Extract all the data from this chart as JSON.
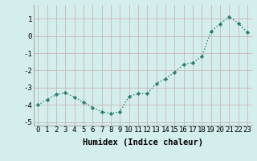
{
  "x": [
    0,
    1,
    2,
    3,
    4,
    5,
    6,
    7,
    8,
    9,
    10,
    11,
    12,
    13,
    14,
    15,
    16,
    17,
    18,
    19,
    20,
    21,
    22,
    23
  ],
  "y": [
    -4.0,
    -3.7,
    -3.4,
    -3.3,
    -3.55,
    -3.85,
    -4.15,
    -4.4,
    -4.5,
    -4.4,
    -3.5,
    -3.35,
    -3.35,
    -2.75,
    -2.5,
    -2.1,
    -1.65,
    -1.55,
    -1.2,
    0.25,
    0.7,
    1.1,
    0.75,
    0.2
  ],
  "line_color": "#2d7d6e",
  "marker": "D",
  "marker_size": 2.2,
  "line_width": 1.0,
  "bg_color": "#d4eeed",
  "grid_color_major": "#b8d4d0",
  "grid_color_minor": "#c8e0dc",
  "xlabel": "Humidex (Indice chaleur)",
  "xlim": [
    -0.5,
    23.5
  ],
  "ylim": [
    -5.2,
    1.8
  ],
  "yticks": [
    -5,
    -4,
    -3,
    -2,
    -1,
    0,
    1
  ],
  "xtick_labels": [
    "0",
    "1",
    "2",
    "3",
    "4",
    "5",
    "6",
    "7",
    "8",
    "9",
    "10",
    "11",
    "12",
    "13",
    "14",
    "15",
    "16",
    "17",
    "18",
    "19",
    "20",
    "21",
    "22",
    "23"
  ],
  "xlabel_fontsize": 7.5,
  "tick_fontsize": 6.5
}
